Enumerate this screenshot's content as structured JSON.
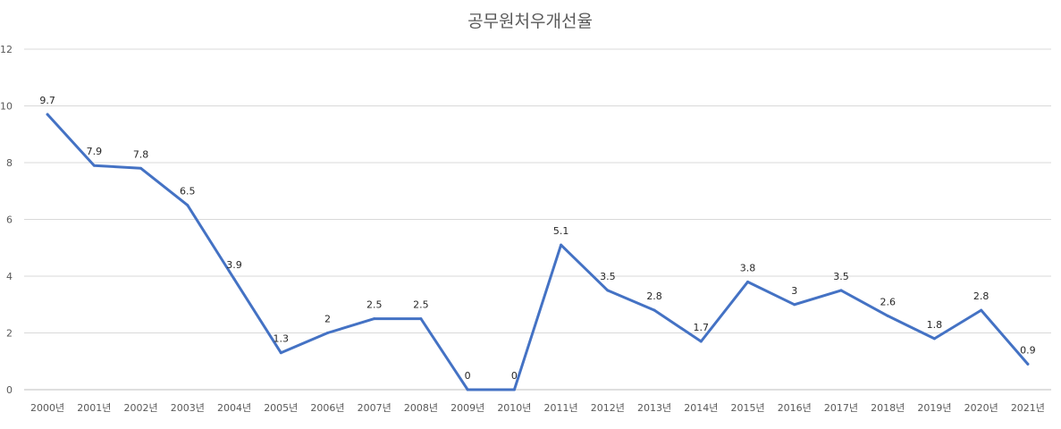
{
  "chart_data": {
    "type": "line",
    "title": "공무원처우개선율",
    "categories": [
      "2000년",
      "2001년",
      "2002년",
      "2003년",
      "2004년",
      "2005년",
      "2006년",
      "2007년",
      "2008년",
      "2009년",
      "2010년",
      "2011년",
      "2012년",
      "2013년",
      "2014년",
      "2015년",
      "2016년",
      "2017년",
      "2018년",
      "2019년",
      "2020년",
      "2021년"
    ],
    "series": [
      {
        "values": [
          9.7,
          7.9,
          7.8,
          6.5,
          3.9,
          1.3,
          2,
          2.5,
          2.5,
          0,
          0,
          5.1,
          3.5,
          2.8,
          1.7,
          3.8,
          3,
          3.5,
          2.6,
          1.8,
          2.8,
          0.9
        ]
      }
    ],
    "data_labels": [
      "9.7",
      "7.9",
      "7.8",
      "6.5",
      "3.9",
      "1.3",
      "2",
      "2.5",
      "2.5",
      "0",
      "0",
      "5.1",
      "3.5",
      "2.8",
      "1.7",
      "3.8",
      "3",
      "3.5",
      "2.6",
      "1.8",
      "2.8",
      "0.9"
    ],
    "yticks": [
      "0",
      "2",
      "4",
      "6",
      "8",
      "10",
      "12"
    ],
    "ylim": [
      0,
      12
    ],
    "xlabel": "",
    "ylabel": "",
    "grid": true,
    "legend": "none",
    "colors": {
      "line": "#4472c4",
      "grid": "#d9d9d9",
      "text": "#595959"
    }
  }
}
